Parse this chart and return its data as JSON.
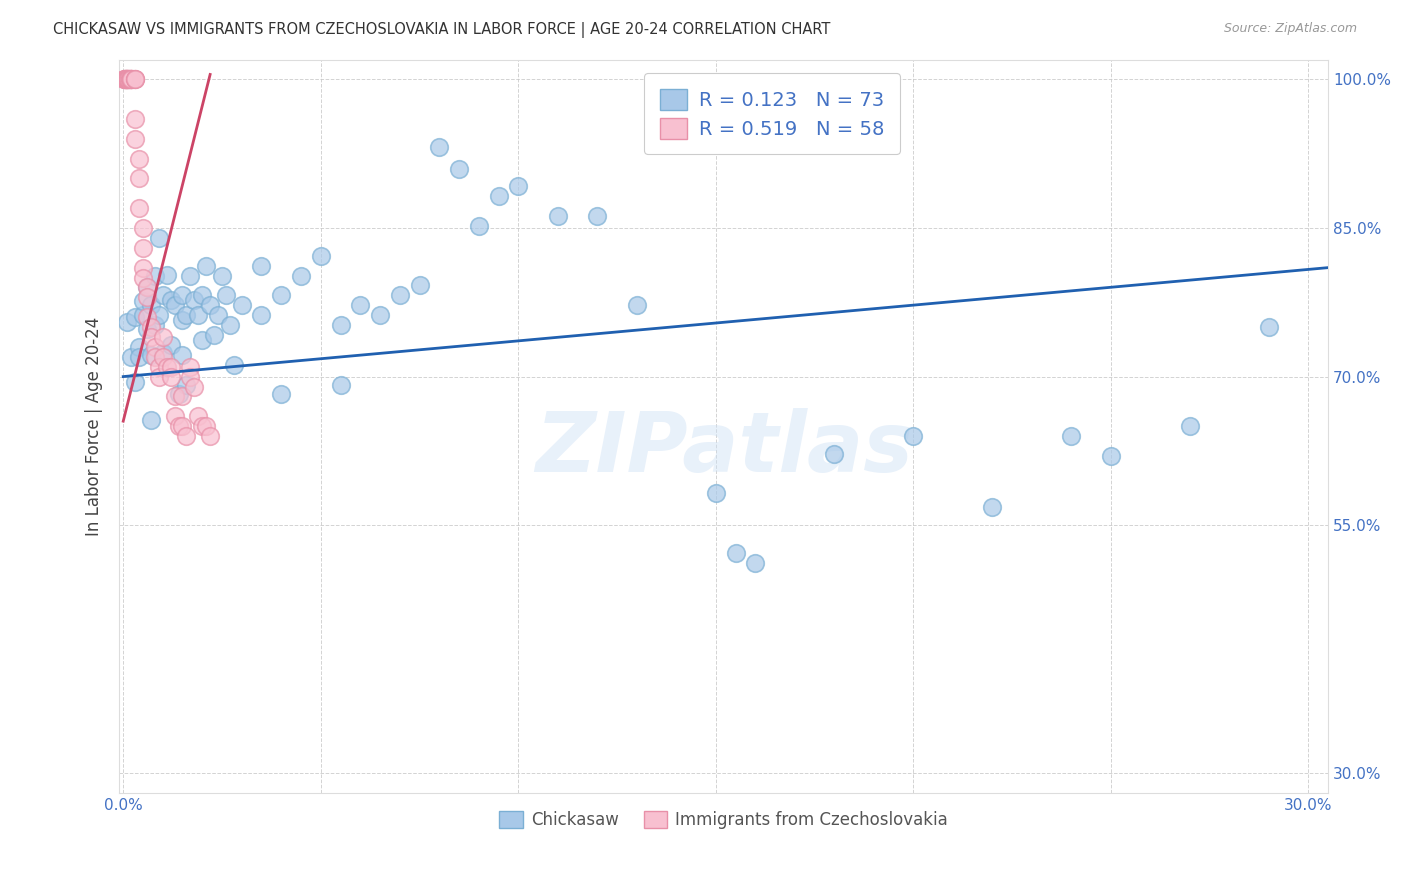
{
  "title": "CHICKASAW VS IMMIGRANTS FROM CZECHOSLOVAKIA IN LABOR FORCE | AGE 20-24 CORRELATION CHART",
  "source": "Source: ZipAtlas.com",
  "ylabel": "In Labor Force | Age 20-24",
  "xlim": [
    -0.001,
    0.305
  ],
  "ylim": [
    0.28,
    1.02
  ],
  "xticks": [
    0.0,
    0.05,
    0.1,
    0.15,
    0.2,
    0.25,
    0.3
  ],
  "xticklabels": [
    "0.0%",
    "",
    "",
    "",
    "",
    "",
    "30.0%"
  ],
  "yticks": [
    0.3,
    0.55,
    0.7,
    0.85,
    1.0
  ],
  "yticklabels": [
    "30.0%",
    "55.0%",
    "70.0%",
    "85.0%",
    "100.0%"
  ],
  "blue_color": "#a8c8e8",
  "blue_edge_color": "#7bafd4",
  "pink_color": "#f8c0d0",
  "pink_edge_color": "#e890a8",
  "trend_blue": "#2060b0",
  "trend_pink": "#cc4466",
  "legend_r_blue": "R = 0.123",
  "legend_n_blue": "N = 73",
  "legend_r_pink": "R = 0.519",
  "legend_n_pink": "N = 58",
  "watermark": "ZIPatlas",
  "blue_scatter_x": [
    0.001,
    0.002,
    0.003,
    0.003,
    0.004,
    0.004,
    0.005,
    0.005,
    0.006,
    0.006,
    0.007,
    0.007,
    0.007,
    0.008,
    0.008,
    0.009,
    0.009,
    0.01,
    0.01,
    0.011,
    0.012,
    0.012,
    0.013,
    0.014,
    0.015,
    0.015,
    0.015,
    0.016,
    0.016,
    0.017,
    0.018,
    0.019,
    0.02,
    0.02,
    0.021,
    0.022,
    0.023,
    0.024,
    0.025,
    0.026,
    0.027,
    0.028,
    0.03,
    0.035,
    0.035,
    0.04,
    0.04,
    0.045,
    0.05,
    0.055,
    0.055,
    0.06,
    0.065,
    0.07,
    0.075,
    0.08,
    0.085,
    0.09,
    0.095,
    0.1,
    0.11,
    0.12,
    0.13,
    0.15,
    0.155,
    0.16,
    0.18,
    0.2,
    0.22,
    0.24,
    0.25,
    0.27,
    0.29
  ],
  "blue_scatter_y": [
    0.755,
    0.72,
    0.76,
    0.695,
    0.73,
    0.72,
    0.762,
    0.776,
    0.79,
    0.748,
    0.772,
    0.722,
    0.656,
    0.802,
    0.752,
    0.84,
    0.762,
    0.782,
    0.724,
    0.803,
    0.777,
    0.732,
    0.772,
    0.682,
    0.782,
    0.757,
    0.722,
    0.762,
    0.692,
    0.802,
    0.777,
    0.762,
    0.782,
    0.737,
    0.812,
    0.772,
    0.742,
    0.762,
    0.802,
    0.782,
    0.752,
    0.712,
    0.772,
    0.812,
    0.762,
    0.782,
    0.682,
    0.802,
    0.822,
    0.752,
    0.692,
    0.772,
    0.762,
    0.782,
    0.792,
    0.932,
    0.91,
    0.852,
    0.882,
    0.892,
    0.862,
    0.862,
    0.772,
    0.582,
    0.522,
    0.512,
    0.622,
    0.64,
    0.568,
    0.64,
    0.62,
    0.65,
    0.75
  ],
  "pink_scatter_x": [
    0.0002,
    0.0003,
    0.0004,
    0.0005,
    0.0006,
    0.0007,
    0.0008,
    0.0009,
    0.001,
    0.001,
    0.0012,
    0.0013,
    0.0015,
    0.0017,
    0.002,
    0.002,
    0.002,
    0.002,
    0.002,
    0.003,
    0.003,
    0.003,
    0.003,
    0.003,
    0.004,
    0.004,
    0.004,
    0.005,
    0.005,
    0.005,
    0.005,
    0.006,
    0.006,
    0.006,
    0.007,
    0.007,
    0.008,
    0.008,
    0.009,
    0.009,
    0.01,
    0.01,
    0.011,
    0.012,
    0.012,
    0.013,
    0.013,
    0.014,
    0.015,
    0.015,
    0.016,
    0.017,
    0.017,
    0.018,
    0.019,
    0.02,
    0.021,
    0.022
  ],
  "pink_scatter_y": [
    1.0,
    1.0,
    1.0,
    1.0,
    1.0,
    1.0,
    1.0,
    1.0,
    1.0,
    1.0,
    1.0,
    1.0,
    1.0,
    1.0,
    1.0,
    1.0,
    1.0,
    1.0,
    1.0,
    1.0,
    1.0,
    1.0,
    0.96,
    0.94,
    0.92,
    0.9,
    0.87,
    0.85,
    0.83,
    0.81,
    0.8,
    0.79,
    0.78,
    0.76,
    0.75,
    0.74,
    0.73,
    0.72,
    0.71,
    0.7,
    0.74,
    0.72,
    0.71,
    0.71,
    0.7,
    0.68,
    0.66,
    0.65,
    0.68,
    0.65,
    0.64,
    0.71,
    0.7,
    0.69,
    0.66,
    0.65,
    0.65,
    0.64
  ],
  "blue_trend_x": [
    0.0,
    0.305
  ],
  "blue_trend_y": [
    0.7,
    0.81
  ],
  "pink_trend_x": [
    0.0,
    0.022
  ],
  "pink_trend_y": [
    0.655,
    1.005
  ]
}
